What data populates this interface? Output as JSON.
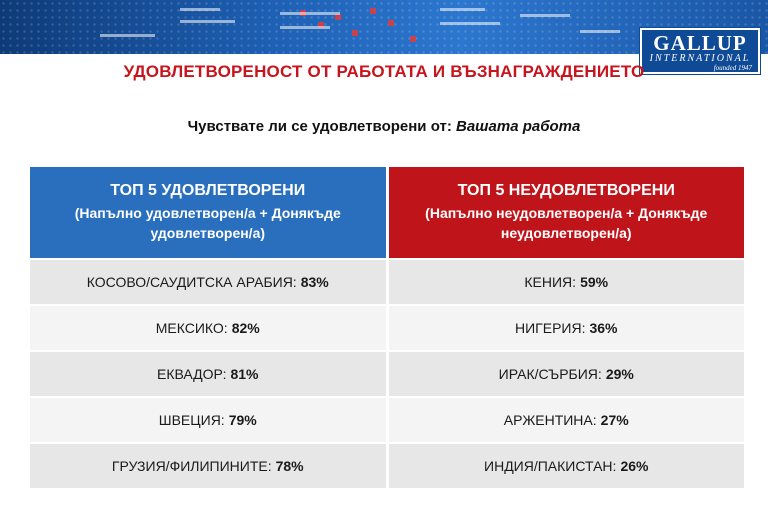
{
  "logo": {
    "name": "GALLUP",
    "sub": "INTERNATIONAL",
    "founded": "founded 1947"
  },
  "title": "УДОВЛЕТВОРЕНОСТ ОТ РАБОТАТА И ВЪЗНАГРАЖДЕНИЕТО",
  "question": {
    "prefix": "Чувствате ли се удовлетворени от:",
    "subject": "Вашата работа"
  },
  "left": {
    "header": "ТОП 5 УДОВЛЕТВОРЕНИ",
    "subheader": "(Напълно удовлетворен/а + Донякъде удовлетворен/а)",
    "color": "#2a6fbd",
    "rows": [
      {
        "country": "КОСОВО/САУДИТСКА АРАБИЯ:",
        "value": "83%"
      },
      {
        "country": "МЕКСИКО:",
        "value": "82%"
      },
      {
        "country": "ЕКВАДОР:",
        "value": "81%"
      },
      {
        "country": "ШВЕЦИЯ:",
        "value": "79%"
      },
      {
        "country": "ГРУЗИЯ/ФИЛИПИНИТЕ:",
        "value": "78%"
      }
    ]
  },
  "right": {
    "header": "ТОП 5 НЕУДОВЛЕТВОРЕНИ",
    "subheader": "(Напълно неудовлетворен/а + Донякъде неудовлетворен/а)",
    "color": "#c0141b",
    "rows": [
      {
        "country": "КЕНИЯ:",
        "value": "59%"
      },
      {
        "country": "НИГЕРИЯ:",
        "value": "36%"
      },
      {
        "country": "ИРАК/СЪРБИЯ:",
        "value": "29%"
      },
      {
        "country": "АРЖЕНТИНА:",
        "value": "27%"
      },
      {
        "country": "ИНДИЯ/ПАКИСТАН:",
        "value": "26%"
      }
    ]
  }
}
